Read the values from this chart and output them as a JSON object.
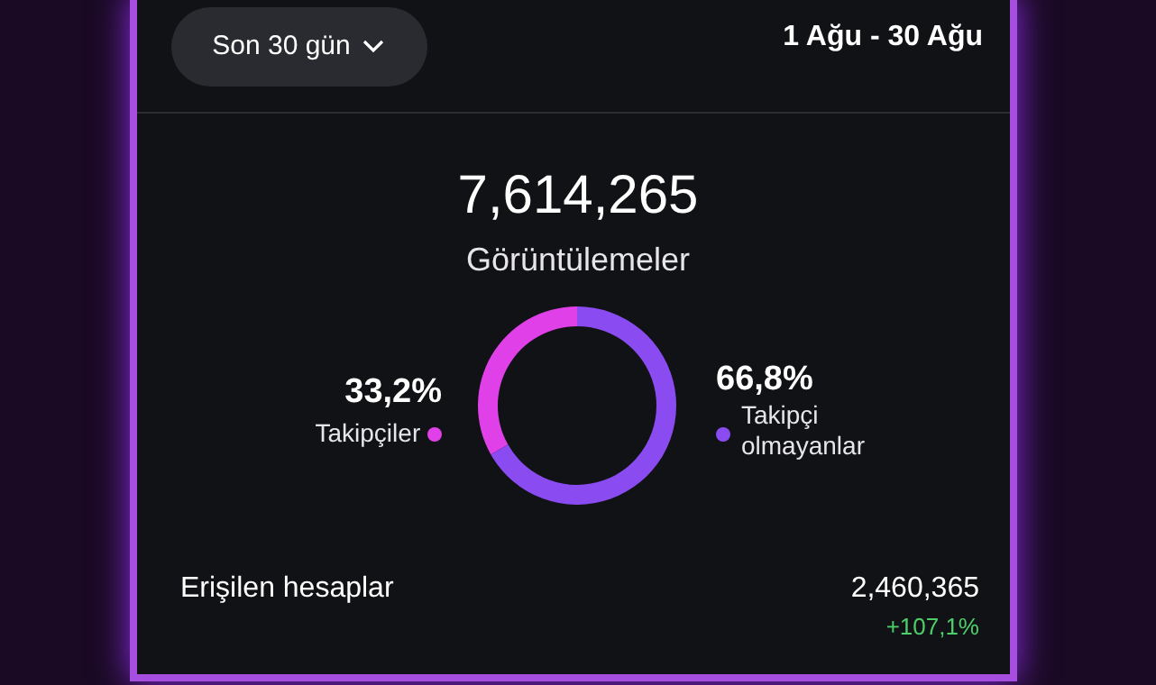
{
  "chart_data": {
    "type": "donut",
    "title": "7,614,265",
    "subtitle": "Görüntülemeler",
    "categories": [
      "Takipçiler",
      "Takipçi olmayanlar"
    ],
    "values": [
      33.2,
      66.8
    ],
    "value_labels": [
      "33,2%",
      "66,8%"
    ],
    "colors": [
      "#e040e8",
      "#8a4cf0"
    ],
    "annotations": [
      "Son 30 gün",
      "1 Ağu - 30 Ağu",
      "Erişilen hesaplar",
      "2,460,365",
      "+107,1%"
    ]
  }
}
